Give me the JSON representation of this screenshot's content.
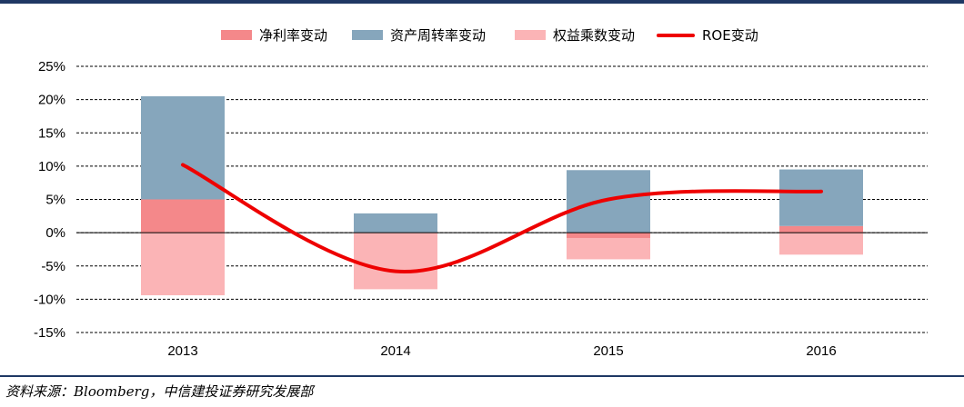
{
  "colors": {
    "net_margin": "#f4888a",
    "asset_turnover": "#86a6bc",
    "equity_multiplier": "#fbb4b6",
    "roe": "#ee0000",
    "frame": "#1f3864"
  },
  "legend": {
    "net_margin": "净利率变动",
    "asset_turnover": "资产周转率变动",
    "equity_multiplier": "权益乘数变动",
    "roe": "ROE变动"
  },
  "source": "资料来源：Bloomberg，中信建投证券研究发展部",
  "chart_data": {
    "type": "bar",
    "stacked": true,
    "categories": [
      "2013",
      "2014",
      "2015",
      "2016"
    ],
    "series": [
      {
        "name": "净利率变动",
        "key": "net_margin",
        "values": [
          5.0,
          0.0,
          -0.8,
          1.0
        ]
      },
      {
        "name": "资产周转率变动",
        "key": "asset_turnover",
        "values": [
          15.5,
          2.9,
          9.4,
          8.5
        ]
      },
      {
        "name": "权益乘数变动",
        "key": "equity_multiplier",
        "values": [
          -9.4,
          -8.5,
          -3.2,
          -3.3
        ]
      },
      {
        "name": "ROE变动",
        "key": "roe",
        "type": "line",
        "values": [
          10.2,
          -5.8,
          5.0,
          6.2
        ]
      }
    ],
    "ylim": [
      -15,
      25
    ],
    "yticks": [
      -15,
      -10,
      -5,
      0,
      5,
      10,
      15,
      20,
      25
    ],
    "ytick_labels": [
      "-15%",
      "-10%",
      "-5%",
      "0%",
      "5%",
      "10%",
      "15%",
      "20%",
      "25%"
    ],
    "grid": true,
    "legend_position": "top"
  }
}
